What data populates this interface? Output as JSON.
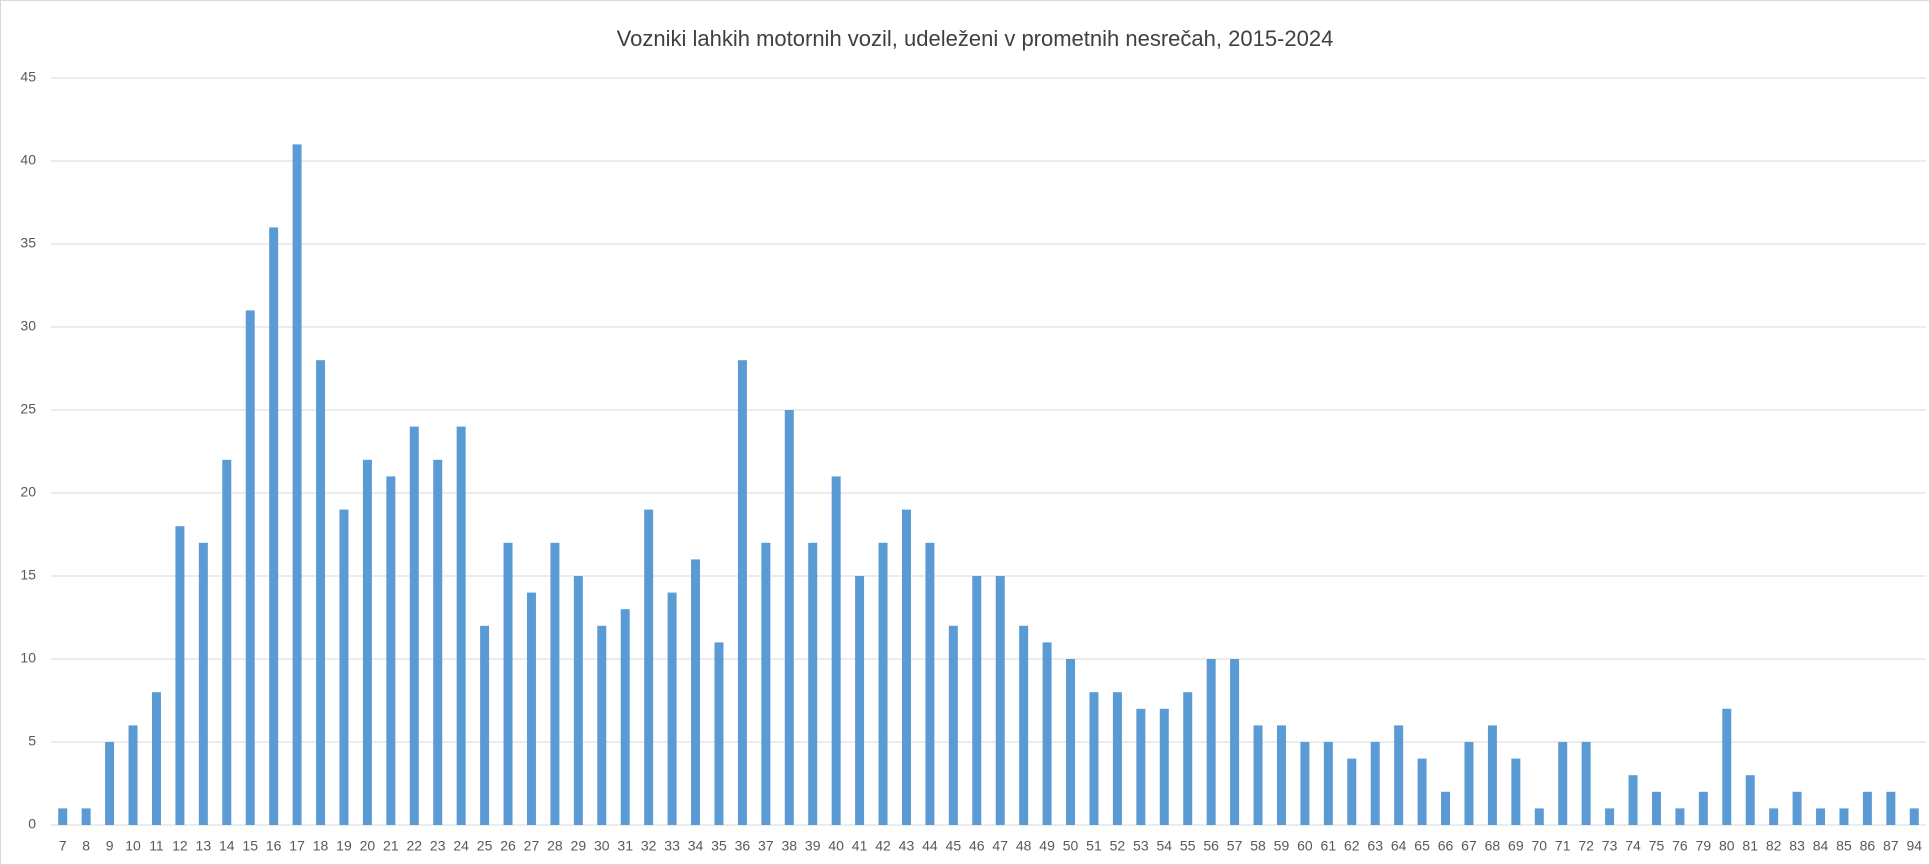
{
  "chart_data": {
    "type": "bar",
    "title": "Vozniki lahkih motornih vozil, udeleženi v prometnih nesrečah, 2015-2024",
    "categories": [
      "7",
      "8",
      "9",
      "10",
      "11",
      "12",
      "13",
      "14",
      "15",
      "16",
      "17",
      "18",
      "19",
      "20",
      "21",
      "22",
      "23",
      "24",
      "25",
      "26",
      "27",
      "28",
      "29",
      "30",
      "31",
      "32",
      "33",
      "34",
      "35",
      "36",
      "37",
      "38",
      "39",
      "40",
      "41",
      "42",
      "43",
      "44",
      "45",
      "46",
      "47",
      "48",
      "49",
      "50",
      "51",
      "52",
      "53",
      "54",
      "55",
      "56",
      "57",
      "58",
      "59",
      "60",
      "61",
      "62",
      "63",
      "64",
      "65",
      "66",
      "67",
      "68",
      "69",
      "70",
      "71",
      "72",
      "73",
      "74",
      "75",
      "76",
      "79",
      "80",
      "81",
      "82",
      "83",
      "84",
      "85",
      "86",
      "87",
      "94"
    ],
    "values": [
      1,
      1,
      5,
      6,
      8,
      18,
      17,
      22,
      31,
      36,
      41,
      28,
      19,
      22,
      21,
      24,
      22,
      24,
      12,
      17,
      14,
      17,
      15,
      12,
      13,
      19,
      14,
      16,
      11,
      28,
      17,
      25,
      17,
      21,
      15,
      17,
      19,
      17,
      12,
      15,
      15,
      12,
      11,
      10,
      8,
      8,
      7,
      7,
      8,
      10,
      10,
      6,
      6,
      5,
      5,
      4,
      5,
      6,
      4,
      2,
      5,
      6,
      4,
      1,
      5,
      5,
      1,
      3,
      2,
      1,
      2,
      7,
      3,
      1,
      2,
      1,
      1,
      2,
      2,
      1
    ],
    "color": "#5b9bd5",
    "ylim": [
      0,
      45
    ],
    "yticks": [
      0,
      5,
      10,
      15,
      20,
      25,
      30,
      35,
      40,
      45
    ],
    "grid": true
  }
}
